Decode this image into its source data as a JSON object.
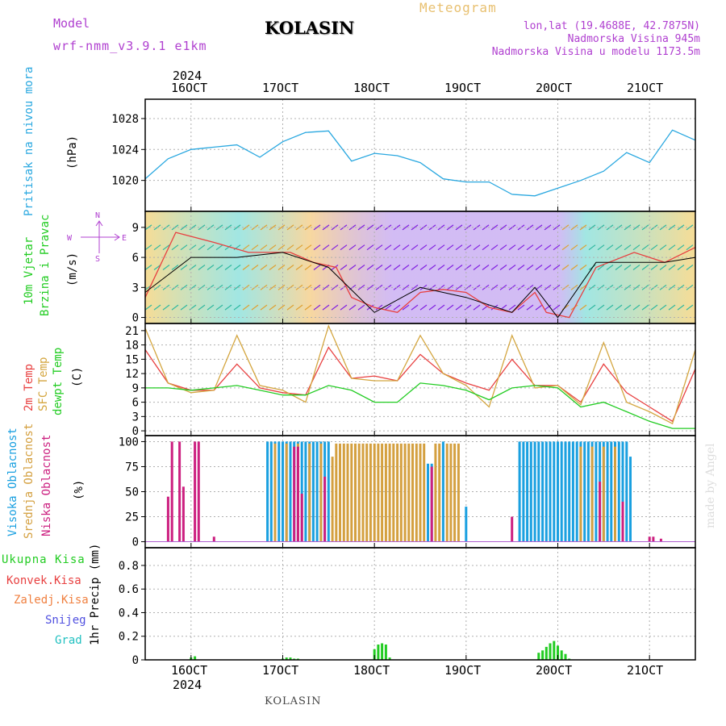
{
  "header": {
    "model_label": "Model",
    "model_name": "wrf-nmm_v3.9.1 e1km",
    "station": "KOLASIN",
    "product": "Meteogram",
    "lonlat": "lon,lat (19.4688E, 42.7875N)",
    "elevation": "Nadmorska Visina 945m",
    "model_elevation": "Nadmorska Visina u modelu 1173.5m"
  },
  "footer": {
    "station": "KOLASIN",
    "credit": "made by Angel"
  },
  "colors": {
    "pressure": "#2aa8e0",
    "temp": "#e84040",
    "sfc": "#d4a640",
    "dew": "#22cc22",
    "high": "#1aa0e0",
    "mid": "#d4a040",
    "low": "#cc2080",
    "precip": "#22cc22",
    "purple": "#b040d0",
    "wind_purple": "#8020e0"
  },
  "time_axis": {
    "year": "2024",
    "labels": [
      "16OCT",
      "17OCT",
      "18OCT",
      "19OCT",
      "20OCT",
      "21OCT"
    ],
    "range": [
      "2024-10-15T12:00",
      "2024-10-21T12:00"
    ]
  },
  "chart_data": [
    {
      "type": "line",
      "title": "",
      "ylabel": "Pritisak na nivou mora",
      "unit": "(hPa)",
      "yticks": [
        1020,
        1024,
        1028
      ],
      "ylim": [
        1016.0,
        1030.5
      ],
      "series": [
        {
          "color_key": "pressure",
          "x": [
            "2024-10-15T12:00",
            "2024-10-15T18:00",
            "2024-10-16T00:00",
            "2024-10-16T06:00",
            "2024-10-16T12:00",
            "2024-10-16T18:00",
            "2024-10-17T00:00",
            "2024-10-17T06:00",
            "2024-10-17T12:00",
            "2024-10-17T18:00",
            "2024-10-18T00:00",
            "2024-10-18T06:00",
            "2024-10-18T12:00",
            "2024-10-18T18:00",
            "2024-10-19T00:00",
            "2024-10-19T06:00",
            "2024-10-19T12:00",
            "2024-10-19T18:00",
            "2024-10-20T00:00",
            "2024-10-20T06:00",
            "2024-10-20T12:00",
            "2024-10-20T18:00",
            "2024-10-21T00:00",
            "2024-10-21T06:00",
            "2024-10-21T12:00"
          ],
          "values": [
            1020.2,
            1022.8,
            1024.0,
            1024.3,
            1024.6,
            1023.0,
            1025.0,
            1026.2,
            1026.4,
            1022.5,
            1023.5,
            1023.2,
            1022.3,
            1020.2,
            1019.8,
            1019.8,
            1018.2,
            1018.0,
            1019.0,
            1020.0,
            1021.2,
            1023.6,
            1022.3,
            1026.5,
            1025.2
          ]
        }
      ]
    },
    {
      "type": "line",
      "title": "",
      "ylabel": "10m Vjetar Brzina i Pravac",
      "unit": "(m/s)",
      "yticks": [
        0,
        3,
        6,
        9
      ],
      "ylim": [
        -0.6,
        10.6
      ],
      "compass": {
        "n": "N",
        "s": "S",
        "w": "W",
        "e": "E"
      },
      "series": [
        {
          "name": "speed",
          "color_key": "temp",
          "x": [
            "2024-10-15T12:00",
            "2024-10-15T20:00",
            "2024-10-16T06:00",
            "2024-10-16T15:00",
            "2024-10-17T02:00",
            "2024-10-17T08:00",
            "2024-10-17T14:00",
            "2024-10-17T18:00",
            "2024-10-18T00:00",
            "2024-10-18T06:00",
            "2024-10-18T12:00",
            "2024-10-18T18:00",
            "2024-10-19T00:00",
            "2024-10-19T06:00",
            "2024-10-19T12:00",
            "2024-10-19T18:00",
            "2024-10-19T21:00",
            "2024-10-20T03:00",
            "2024-10-20T10:00",
            "2024-10-20T20:00",
            "2024-10-21T04:00",
            "2024-10-21T12:00"
          ],
          "values": [
            2.0,
            8.5,
            7.5,
            6.5,
            6.5,
            5.5,
            5.0,
            2.0,
            1.0,
            0.5,
            2.5,
            2.8,
            2.5,
            1.0,
            0.5,
            2.5,
            0.5,
            0.0,
            5.0,
            6.5,
            5.5,
            7.0
          ]
        },
        {
          "name": "gust",
          "color_key": "black",
          "x": [
            "2024-10-15T12:00",
            "2024-10-16T00:00",
            "2024-10-16T12:00",
            "2024-10-17T00:00",
            "2024-10-17T12:00",
            "2024-10-18T00:00",
            "2024-10-18T12:00",
            "2024-10-19T00:00",
            "2024-10-19T12:00",
            "2024-10-19T18:00",
            "2024-10-20T00:00",
            "2024-10-20T10:00",
            "2024-10-20T20:00",
            "2024-10-21T04:00",
            "2024-10-21T12:00"
          ],
          "values": [
            2.5,
            6.0,
            6.0,
            6.5,
            5.0,
            0.5,
            3.0,
            2.0,
            0.5,
            3.0,
            0.0,
            5.5,
            5.5,
            5.5,
            6.0
          ]
        }
      ]
    },
    {
      "type": "line",
      "title": "",
      "ylabels": [
        "2m Temp",
        "SFC Temp",
        "dewpt Temp"
      ],
      "unit": "(C)",
      "yticks": [
        0,
        3,
        6,
        9,
        12,
        15,
        18,
        21
      ],
      "ylim": [
        -1.0,
        22.5
      ],
      "x": [
        "2024-10-15T12:00",
        "2024-10-15T18:00",
        "2024-10-16T00:00",
        "2024-10-16T06:00",
        "2024-10-16T12:00",
        "2024-10-16T18:00",
        "2024-10-17T00:00",
        "2024-10-17T06:00",
        "2024-10-17T12:00",
        "2024-10-17T18:00",
        "2024-10-18T00:00",
        "2024-10-18T06:00",
        "2024-10-18T12:00",
        "2024-10-18T18:00",
        "2024-10-19T00:00",
        "2024-10-19T06:00",
        "2024-10-19T12:00",
        "2024-10-19T18:00",
        "2024-10-20T00:00",
        "2024-10-20T06:00",
        "2024-10-20T12:00",
        "2024-10-20T18:00",
        "2024-10-21T00:00",
        "2024-10-21T06:00",
        "2024-10-21T12:00"
      ],
      "series": [
        {
          "name": "2m Temp",
          "color_key": "temp",
          "values": [
            17.0,
            10.0,
            8.5,
            8.5,
            14.0,
            9.0,
            8.0,
            7.5,
            17.5,
            11.0,
            11.5,
            10.5,
            16.0,
            12.0,
            10.0,
            8.5,
            15.0,
            9.5,
            9.5,
            6.0,
            14.0,
            8.0,
            5.0,
            2.0,
            13.0
          ]
        },
        {
          "name": "SFC Temp",
          "color_key": "sfc",
          "values": [
            21.5,
            10.0,
            8.0,
            8.5,
            20.0,
            9.5,
            8.5,
            6.0,
            22.0,
            11.0,
            10.5,
            10.5,
            20.0,
            12.0,
            9.5,
            5.0,
            20.0,
            9.0,
            9.5,
            5.5,
            18.5,
            6.0,
            4.0,
            1.5,
            17.0
          ]
        },
        {
          "name": "dewpt Temp",
          "color_key": "dew",
          "values": [
            9.0,
            9.0,
            8.5,
            9.0,
            9.5,
            8.5,
            7.5,
            7.5,
            9.5,
            8.5,
            6.0,
            6.0,
            10.0,
            9.5,
            8.5,
            6.5,
            9.0,
            9.5,
            9.0,
            5.0,
            6.0,
            4.0,
            2.0,
            0.5,
            0.5
          ]
        }
      ]
    },
    {
      "type": "bar",
      "title": "",
      "ylabels": [
        "Visoka Oblacnost",
        "Srednja Oblacnost",
        "Niska Oblacnost"
      ],
      "unit": "(%)",
      "yticks": [
        0,
        25,
        50,
        75,
        100
      ],
      "ylim": [
        -6,
        106
      ],
      "series": [
        {
          "name": "Visoka Oblacnost",
          "color_key": "high",
          "x": [
            "2024-10-16T20:00",
            "2024-10-16T21:00",
            "2024-10-16T22:00",
            "2024-10-16T23:00",
            "2024-10-17T00:00",
            "2024-10-17T01:00",
            "2024-10-17T02:00",
            "2024-10-17T03:00",
            "2024-10-17T04:00",
            "2024-10-17T05:00",
            "2024-10-17T06:00",
            "2024-10-17T07:00",
            "2024-10-17T08:00",
            "2024-10-17T09:00",
            "2024-10-17T10:00",
            "2024-10-17T11:00",
            "2024-10-17T12:00",
            "2024-10-18T14:00",
            "2024-10-18T15:00",
            "2024-10-18T18:00",
            "2024-10-19T00:00",
            "2024-10-19T14:00",
            "2024-10-19T15:00",
            "2024-10-19T16:00",
            "2024-10-19T17:00",
            "2024-10-19T18:00",
            "2024-10-19T19:00",
            "2024-10-19T20:00",
            "2024-10-19T21:00",
            "2024-10-19T22:00",
            "2024-10-19T23:00",
            "2024-10-20T00:00",
            "2024-10-20T01:00",
            "2024-10-20T02:00",
            "2024-10-20T03:00",
            "2024-10-20T04:00",
            "2024-10-20T05:00",
            "2024-10-20T06:00",
            "2024-10-20T07:00",
            "2024-10-20T08:00",
            "2024-10-20T09:00",
            "2024-10-20T10:00",
            "2024-10-20T11:00",
            "2024-10-20T12:00",
            "2024-10-20T13:00",
            "2024-10-20T14:00",
            "2024-10-20T15:00",
            "2024-10-20T16:00",
            "2024-10-20T17:00",
            "2024-10-20T18:00",
            "2024-10-20T19:00"
          ],
          "values": [
            100,
            100,
            100,
            100,
            100,
            100,
            100,
            100,
            100,
            100,
            100,
            100,
            100,
            100,
            100,
            100,
            100,
            78,
            78,
            100,
            35,
            100,
            100,
            100,
            100,
            100,
            100,
            100,
            100,
            100,
            100,
            100,
            100,
            100,
            100,
            100,
            100,
            100,
            100,
            100,
            100,
            100,
            100,
            100,
            100,
            100,
            100,
            100,
            100,
            100,
            85
          ]
        },
        {
          "name": "Srednja Oblacnost",
          "color_key": "mid",
          "x": [
            "2024-10-16T22:00",
            "2024-10-17T01:00",
            "2024-10-17T04:00",
            "2024-10-17T07:00",
            "2024-10-17T10:00",
            "2024-10-17T13:00",
            "2024-10-17T14:00",
            "2024-10-17T15:00",
            "2024-10-17T16:00",
            "2024-10-17T17:00",
            "2024-10-17T18:00",
            "2024-10-17T19:00",
            "2024-10-17T20:00",
            "2024-10-17T21:00",
            "2024-10-17T22:00",
            "2024-10-17T23:00",
            "2024-10-18T00:00",
            "2024-10-18T01:00",
            "2024-10-18T02:00",
            "2024-10-18T03:00",
            "2024-10-18T04:00",
            "2024-10-18T05:00",
            "2024-10-18T06:00",
            "2024-10-18T07:00",
            "2024-10-18T08:00",
            "2024-10-18T09:00",
            "2024-10-18T10:00",
            "2024-10-18T11:00",
            "2024-10-18T12:00",
            "2024-10-18T13:00",
            "2024-10-18T16:00",
            "2024-10-18T17:00",
            "2024-10-18T19:00",
            "2024-10-18T20:00",
            "2024-10-18T21:00",
            "2024-10-18T22:00",
            "2024-10-20T06:00",
            "2024-10-20T09:00",
            "2024-10-20T12:00",
            "2024-10-20T15:00"
          ],
          "values": [
            98,
            98,
            98,
            98,
            98,
            85,
            98,
            98,
            98,
            98,
            98,
            98,
            98,
            98,
            98,
            98,
            98,
            98,
            98,
            98,
            98,
            98,
            98,
            98,
            98,
            98,
            98,
            98,
            98,
            98,
            98,
            98,
            98,
            98,
            98,
            98,
            95,
            95,
            95,
            95
          ]
        },
        {
          "name": "Niska Oblacnost",
          "color_key": "low",
          "x": [
            "2024-10-15T18:00",
            "2024-10-15T19:00",
            "2024-10-15T21:00",
            "2024-10-15T22:00",
            "2024-10-16T01:00",
            "2024-10-16T02:00",
            "2024-10-16T06:00",
            "2024-10-17T03:00",
            "2024-10-17T04:00",
            "2024-10-17T05:00",
            "2024-10-17T11:00",
            "2024-10-18T15:00",
            "2024-10-19T12:00",
            "2024-10-20T11:00",
            "2024-10-20T17:00",
            "2024-10-21T00:00",
            "2024-10-21T01:00",
            "2024-10-21T03:00"
          ],
          "values": [
            45,
            100,
            100,
            55,
            100,
            100,
            5,
            95,
            95,
            48,
            65,
            75,
            25,
            60,
            40,
            5,
            5,
            3
          ]
        }
      ]
    },
    {
      "type": "bar",
      "title": "",
      "ylabel": "1hr Precip (mm)",
      "legend": [
        "Ukupna Kisa",
        "Konvek.Kisa",
        "Zaledj.Kisa",
        "Snijeg",
        "Grad"
      ],
      "yticks": [
        0,
        0.2,
        0.4,
        0.6,
        0.8
      ],
      "ylim": [
        0,
        0.95
      ],
      "series": [
        {
          "name": "Ukupna Kisa",
          "color_key": "precip",
          "x": [
            "2024-10-16T00:00",
            "2024-10-16T01:00",
            "2024-10-17T00:00",
            "2024-10-17T01:00",
            "2024-10-17T02:00",
            "2024-10-17T03:00",
            "2024-10-17T04:00",
            "2024-10-18T00:00",
            "2024-10-18T01:00",
            "2024-10-18T02:00",
            "2024-10-18T03:00",
            "2024-10-18T04:00",
            "2024-10-19T19:00",
            "2024-10-19T20:00",
            "2024-10-19T21:00",
            "2024-10-19T22:00",
            "2024-10-19T23:00",
            "2024-10-20T00:00",
            "2024-10-20T01:00",
            "2024-10-20T02:00",
            "2024-10-20T03:00"
          ],
          "values": [
            0.02,
            0.03,
            0.01,
            0.02,
            0.02,
            0.01,
            0.01,
            0.09,
            0.13,
            0.14,
            0.13,
            0.02,
            0.06,
            0.08,
            0.11,
            0.14,
            0.16,
            0.12,
            0.08,
            0.05,
            0.01
          ]
        }
      ]
    }
  ]
}
